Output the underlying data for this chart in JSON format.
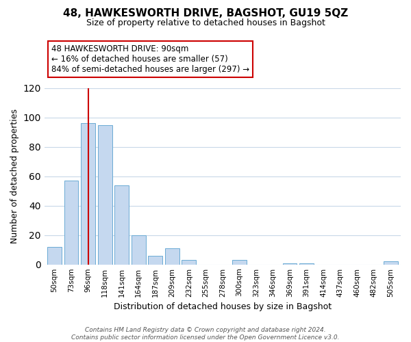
{
  "title": "48, HAWKESWORTH DRIVE, BAGSHOT, GU19 5QZ",
  "subtitle": "Size of property relative to detached houses in Bagshot",
  "xlabel": "Distribution of detached houses by size in Bagshot",
  "ylabel": "Number of detached properties",
  "bar_labels": [
    "50sqm",
    "73sqm",
    "96sqm",
    "118sqm",
    "141sqm",
    "164sqm",
    "187sqm",
    "209sqm",
    "232sqm",
    "255sqm",
    "278sqm",
    "300sqm",
    "323sqm",
    "346sqm",
    "369sqm",
    "391sqm",
    "414sqm",
    "437sqm",
    "460sqm",
    "482sqm",
    "505sqm"
  ],
  "bar_heights": [
    12,
    57,
    96,
    95,
    54,
    20,
    6,
    11,
    3,
    0,
    0,
    3,
    0,
    0,
    1,
    1,
    0,
    0,
    0,
    0,
    2
  ],
  "bar_color": "#c5d8ef",
  "bar_edge_color": "#6aaad4",
  "vline_x": 2,
  "vline_color": "#cc0000",
  "ylim": [
    0,
    120
  ],
  "yticks": [
    0,
    20,
    40,
    60,
    80,
    100,
    120
  ],
  "annotation_title": "48 HAWKESWORTH DRIVE: 90sqm",
  "annotation_line1": "← 16% of detached houses are smaller (57)",
  "annotation_line2": "84% of semi-detached houses are larger (297) →",
  "annotation_box_color": "#ffffff",
  "annotation_box_edge": "#cc0000",
  "footer_line1": "Contains HM Land Registry data © Crown copyright and database right 2024.",
  "footer_line2": "Contains public sector information licensed under the Open Government Licence v3.0.",
  "bg_color": "#ffffff",
  "grid_color": "#c8d8e8"
}
